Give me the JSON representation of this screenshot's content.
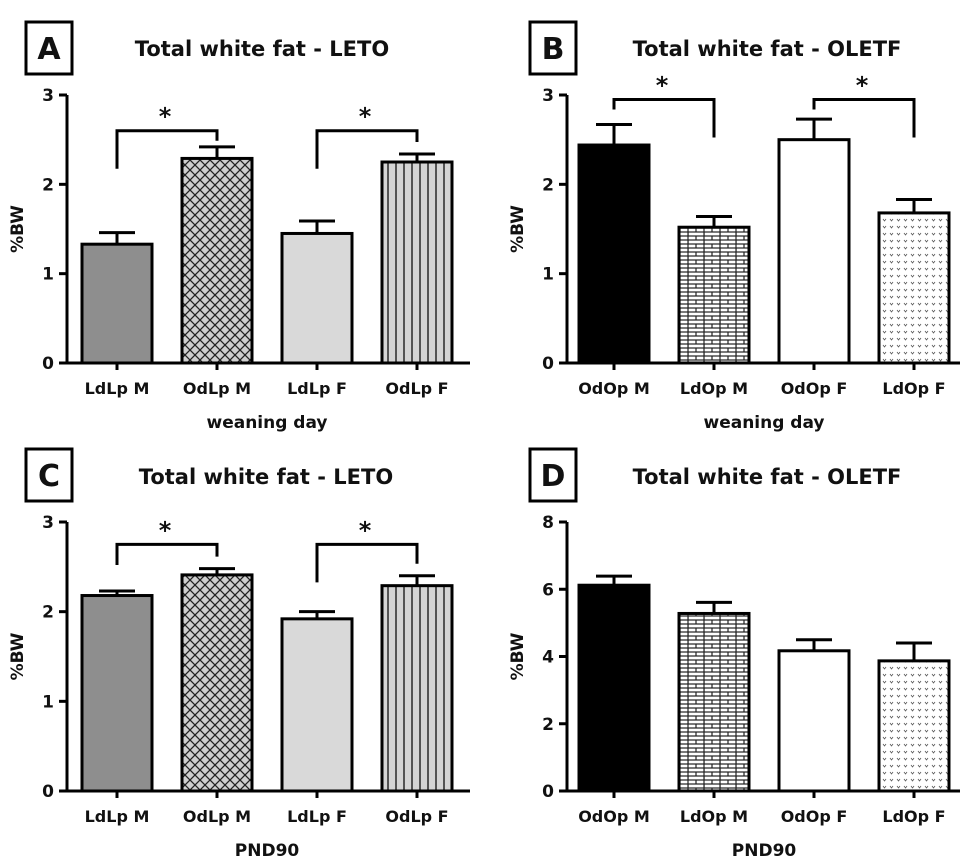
{
  "chart_data": [
    {
      "id": "A",
      "type": "bar",
      "panel_label": "A",
      "title": "Total white fat - LETO",
      "ylabel": "%BW",
      "xlabel": "weaning day",
      "ylim": [
        0,
        3
      ],
      "yticks": [
        "0",
        "1",
        "2",
        "3"
      ],
      "categories": [
        "LdLp M",
        "OdLp M",
        "LdLp F",
        "OdLp F"
      ],
      "values": [
        1.33,
        2.29,
        1.45,
        2.25
      ],
      "errors": [
        0.13,
        0.13,
        0.14,
        0.09
      ],
      "patterns": [
        "gray",
        "crosshatch",
        "lightgray",
        "vstripes"
      ],
      "significance": [
        {
          "from": 0,
          "to": 1,
          "label": "*",
          "level": 2.6
        },
        {
          "from": 2,
          "to": 3,
          "label": "*",
          "level": 2.6
        }
      ]
    },
    {
      "id": "B",
      "type": "bar",
      "panel_label": "B",
      "title": "Total white fat - OLETF",
      "ylabel": "%BW",
      "xlabel": "weaning day",
      "ylim": [
        0,
        3
      ],
      "yticks": [
        "0",
        "1",
        "2",
        "3"
      ],
      "categories": [
        "OdOp M",
        "LdOp M",
        "OdOp F",
        "LdOp F"
      ],
      "values": [
        2.44,
        1.52,
        2.5,
        1.68
      ],
      "errors": [
        0.23,
        0.12,
        0.23,
        0.15
      ],
      "patterns": [
        "black",
        "brick",
        "white",
        "dots"
      ],
      "significance": [
        {
          "from": 0,
          "to": 1,
          "label": "*",
          "level": 2.95
        },
        {
          "from": 2,
          "to": 3,
          "label": "*",
          "level": 2.95
        }
      ]
    },
    {
      "id": "C",
      "type": "bar",
      "panel_label": "C",
      "title": "Total white fat - LETO",
      "ylabel": "%BW",
      "xlabel": "PND90",
      "ylim": [
        0,
        3
      ],
      "yticks": [
        "0",
        "1",
        "2",
        "3"
      ],
      "categories": [
        "LdLp M",
        "OdLp M",
        "LdLp F",
        "OdLp F"
      ],
      "values": [
        2.18,
        2.41,
        1.92,
        2.29
      ],
      "errors": [
        0.05,
        0.07,
        0.08,
        0.11
      ],
      "patterns": [
        "gray",
        "crosshatch",
        "lightgray",
        "vstripes"
      ],
      "significance": [
        {
          "from": 0,
          "to": 1,
          "label": "*",
          "level": 2.75
        },
        {
          "from": 2,
          "to": 3,
          "label": "*",
          "level": 2.75
        }
      ]
    },
    {
      "id": "D",
      "type": "bar",
      "panel_label": "D",
      "title": "Total white fat - OLETF",
      "ylabel": "%BW",
      "xlabel": "PND90",
      "ylim": [
        0,
        8
      ],
      "yticks": [
        "0",
        "2",
        "4",
        "6",
        "8"
      ],
      "categories": [
        "OdOp M",
        "LdOp M",
        "OdOp F",
        "LdOp F"
      ],
      "values": [
        6.12,
        5.28,
        4.17,
        3.87
      ],
      "errors": [
        0.27,
        0.33,
        0.33,
        0.53
      ],
      "patterns": [
        "black",
        "brick",
        "white",
        "dots"
      ],
      "significance": []
    }
  ]
}
